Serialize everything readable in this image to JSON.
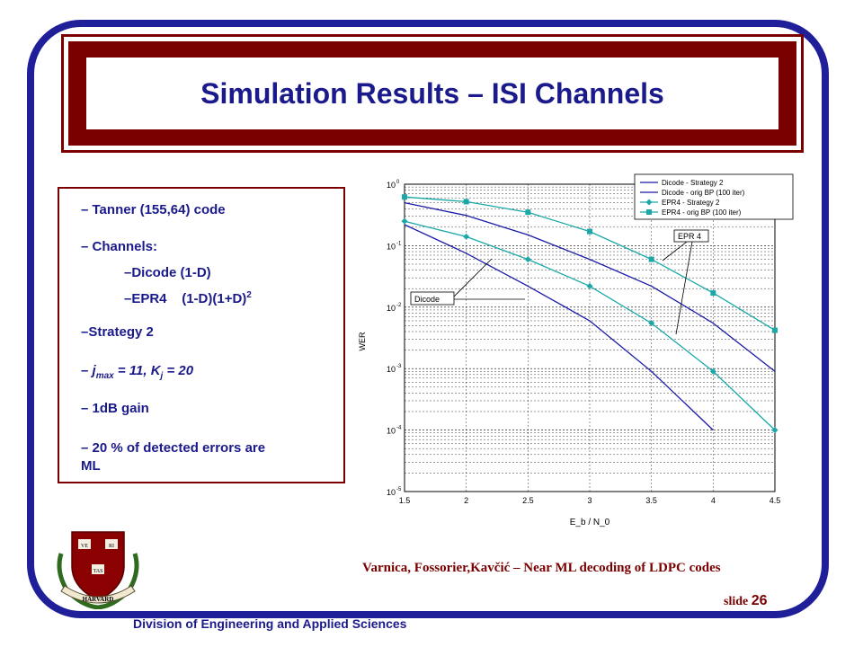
{
  "slide": {
    "title": "Simulation Results – ISI Channels",
    "bullets": {
      "b1": "– Tanner (155,64) code",
      "b2": "– Channels:",
      "b3": "–Dicode (1-D)",
      "b4_text": "–EPR4    (1-D)(1+D)",
      "b4_sup": "2",
      "b5": "–Strategy 2",
      "b6_pre": "– j",
      "b6_sub1": "max",
      "b6_mid": " = 11, K",
      "b6_sub2": "j",
      "b6_post": " = 20",
      "b7": "– 1dB gain",
      "b8_line1": "– 20 % of detected errors are",
      "b8_line2": "ML"
    },
    "citation": "Varnica, Fossorier,Kavčić – Near ML decoding of LDPC codes",
    "slide_label": "slide",
    "slide_number": "26",
    "department": "Division of Engineering and Applied Sciences",
    "logo": {
      "shield_words": [
        "VE",
        "RI",
        "TAS"
      ],
      "ribbon_text": "HARVARD"
    },
    "colors": {
      "frame": "#1f1f99",
      "title_bar": "#7a0000",
      "text_blue": "#1a1a8c",
      "series_dark": "#1a1aa8",
      "series_teal": "#1aa8a8"
    }
  },
  "chart_data": {
    "type": "line",
    "xlabel": "E_b / N_0",
    "ylabel": "WER",
    "xlim": [
      1.5,
      4.5
    ],
    "ylim_log10": [
      -5,
      0
    ],
    "yscale": "log",
    "grid": true,
    "legend_position": "top-right",
    "x_ticks": [
      "1.5",
      "2",
      "2.5",
      "3",
      "3.5",
      "4",
      "4.5"
    ],
    "y_ticks": [
      {
        "base": "10",
        "exp": "0"
      },
      {
        "base": "10",
        "exp": "-1"
      },
      {
        "base": "10",
        "exp": "-2"
      },
      {
        "base": "10",
        "exp": "-3"
      },
      {
        "base": "10",
        "exp": "-4"
      },
      {
        "base": "10",
        "exp": "-5"
      }
    ],
    "series": [
      {
        "name": "Dicode - Strategy 2",
        "color": "#1a1aa8",
        "marker": "none",
        "x": [
          1.5,
          2.0,
          2.5,
          3.0,
          3.5,
          4.0
        ],
        "y": [
          0.22,
          0.075,
          0.022,
          0.006,
          0.0009,
          0.0001
        ]
      },
      {
        "name": "Dicode - orig BP (100 iter)",
        "color": "#1a1aa8",
        "marker": "none",
        "x": [
          1.5,
          2.0,
          2.5,
          3.0,
          3.5,
          4.0,
          4.5
        ],
        "y": [
          0.5,
          0.31,
          0.15,
          0.06,
          0.022,
          0.0055,
          0.0009
        ]
      },
      {
        "name": "EPR4 - Strategy 2",
        "color": "#1aa8a8",
        "marker": "diamond",
        "x": [
          1.5,
          2.0,
          2.5,
          3.0,
          3.5,
          4.0,
          4.5
        ],
        "y": [
          0.25,
          0.14,
          0.06,
          0.022,
          0.0055,
          0.0009,
          0.0001
        ]
      },
      {
        "name": "EPR4 - orig BP (100 iter)",
        "color": "#1aa8a8",
        "marker": "square",
        "x": [
          1.5,
          2.0,
          2.5,
          3.0,
          3.5,
          4.0,
          4.5
        ],
        "y": [
          0.62,
          0.52,
          0.35,
          0.17,
          0.06,
          0.017,
          0.0042
        ]
      }
    ],
    "annotations": [
      {
        "text": "Dicode"
      },
      {
        "text": "EPR 4"
      }
    ]
  }
}
